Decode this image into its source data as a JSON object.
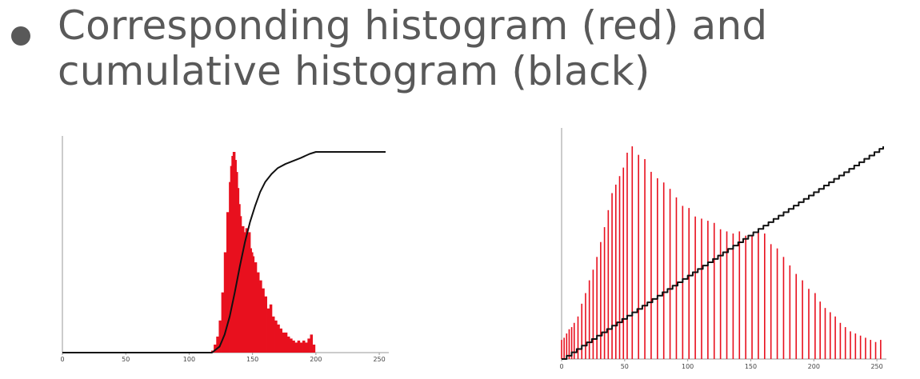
{
  "slide": {
    "bullet_line1": "Corresponding histogram (red) and",
    "bullet_line2": "cumulative histogram (black)"
  },
  "colors": {
    "histogram": "#e8101e",
    "cumulative": "#111111",
    "axis": "#9a9a9a",
    "text": "#595959"
  },
  "chart_data": [
    {
      "type": "bar",
      "description_role": "left",
      "x_ticks": [
        "0",
        "50",
        "100",
        "150",
        "200",
        "250"
      ],
      "xlim": [
        0,
        255
      ],
      "grid": false,
      "series": [
        {
          "kind": "histogram",
          "x": [
            118,
            120,
            122,
            124,
            126,
            128,
            130,
            132,
            133,
            134,
            135,
            136,
            137,
            138,
            139,
            140,
            141,
            142,
            143,
            144,
            145,
            146,
            147,
            148,
            149,
            150,
            151,
            152,
            153,
            154,
            155,
            156,
            157,
            158,
            159,
            160,
            162,
            164,
            166,
            168,
            170,
            172,
            174,
            176,
            178,
            180,
            182,
            184,
            186,
            188,
            190,
            192,
            194,
            196,
            198,
            200
          ],
          "values": [
            0.01,
            0.04,
            0.08,
            0.16,
            0.3,
            0.5,
            0.7,
            0.85,
            0.93,
            0.98,
            1.0,
            0.96,
            0.9,
            0.82,
            0.74,
            0.68,
            0.62,
            0.63,
            0.6,
            0.58,
            0.62,
            0.55,
            0.6,
            0.52,
            0.5,
            0.48,
            0.42,
            0.45,
            0.38,
            0.4,
            0.34,
            0.36,
            0.3,
            0.32,
            0.27,
            0.28,
            0.22,
            0.24,
            0.18,
            0.16,
            0.14,
            0.12,
            0.1,
            0.1,
            0.08,
            0.07,
            0.06,
            0.05,
            0.06,
            0.05,
            0.06,
            0.05,
            0.07,
            0.09,
            0.04,
            0.0
          ]
        },
        {
          "kind": "cumulative",
          "x": [
            0,
            118,
            124,
            128,
            132,
            136,
            140,
            144,
            148,
            152,
            156,
            160,
            165,
            170,
            176,
            182,
            188,
            195,
            200,
            255
          ],
          "values": [
            0,
            0,
            0.03,
            0.09,
            0.18,
            0.3,
            0.43,
            0.55,
            0.65,
            0.73,
            0.8,
            0.85,
            0.89,
            0.92,
            0.94,
            0.955,
            0.97,
            0.99,
            1.0,
            1.0
          ]
        }
      ]
    },
    {
      "type": "bar",
      "description_role": "right",
      "x_ticks": [
        "0",
        "50",
        "100",
        "150",
        "200",
        "250"
      ],
      "xlim": [
        0,
        255
      ],
      "grid": false,
      "series": [
        {
          "kind": "histogram",
          "x": [
            0,
            2,
            4,
            6,
            8,
            10,
            13,
            16,
            19,
            22,
            25,
            28,
            31,
            34,
            37,
            40,
            43,
            46,
            49,
            52,
            56,
            61,
            66,
            71,
            76,
            81,
            86,
            91,
            96,
            101,
            106,
            111,
            116,
            121,
            126,
            131,
            136,
            141,
            146,
            151,
            156,
            161,
            166,
            171,
            176,
            181,
            186,
            191,
            196,
            201,
            205,
            209,
            213,
            217,
            221,
            225,
            229,
            233,
            237,
            241,
            245,
            249,
            253
          ],
          "values": [
            0.09,
            0.1,
            0.12,
            0.14,
            0.15,
            0.17,
            0.2,
            0.26,
            0.31,
            0.37,
            0.42,
            0.48,
            0.55,
            0.62,
            0.7,
            0.78,
            0.82,
            0.86,
            0.9,
            0.97,
            1.0,
            0.96,
            0.94,
            0.88,
            0.85,
            0.83,
            0.8,
            0.76,
            0.72,
            0.71,
            0.67,
            0.66,
            0.65,
            0.64,
            0.61,
            0.6,
            0.59,
            0.6,
            0.58,
            0.58,
            0.6,
            0.59,
            0.54,
            0.52,
            0.48,
            0.44,
            0.4,
            0.37,
            0.33,
            0.31,
            0.27,
            0.24,
            0.22,
            0.2,
            0.17,
            0.15,
            0.13,
            0.12,
            0.11,
            0.1,
            0.09,
            0.08,
            0.09
          ]
        },
        {
          "kind": "cumulative",
          "x": [
            0,
            255
          ],
          "values": [
            0,
            1.0
          ],
          "stepped": true
        }
      ]
    }
  ]
}
